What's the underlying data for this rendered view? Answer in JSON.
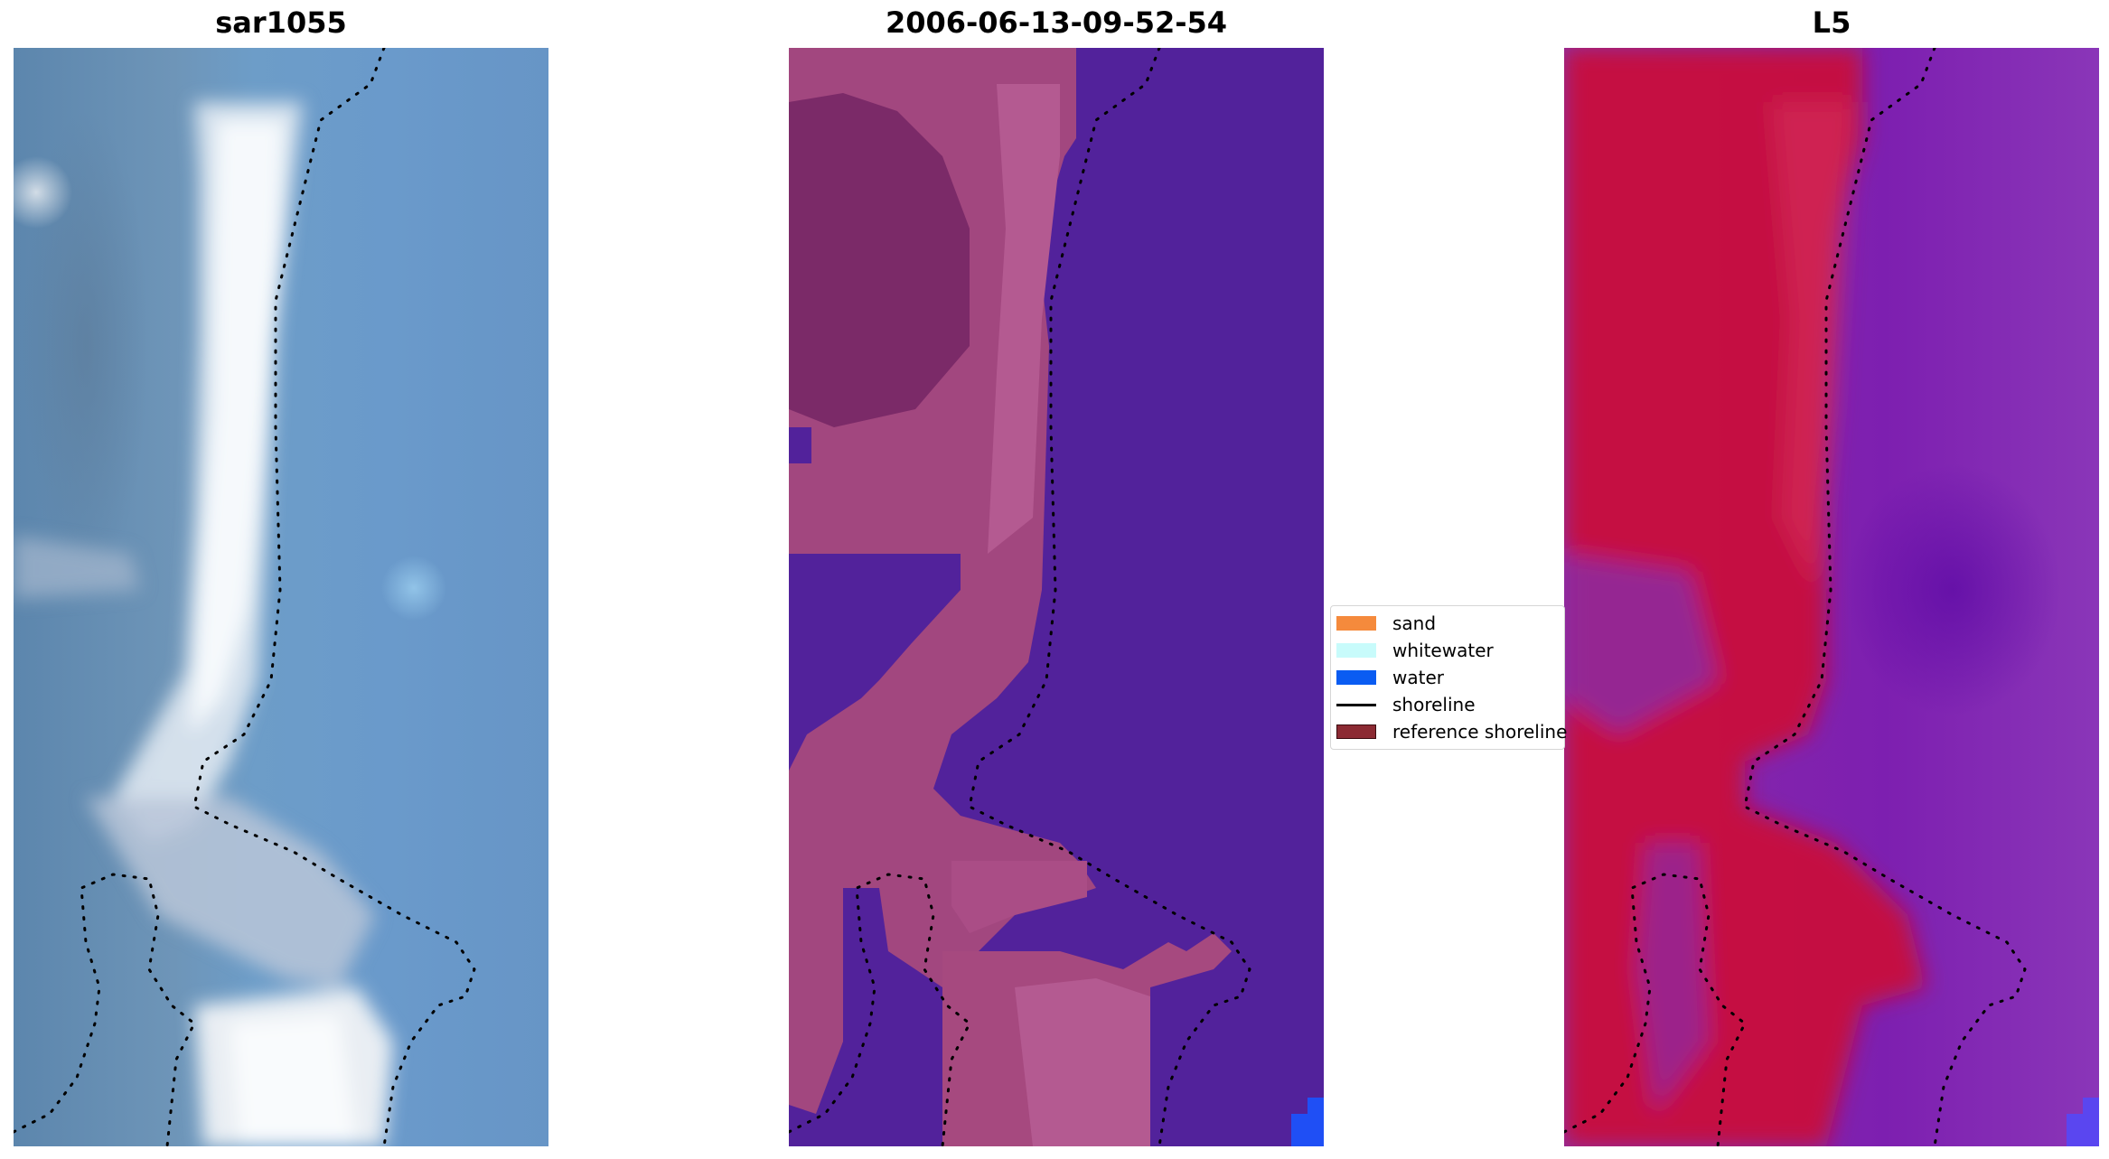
{
  "panels": [
    {
      "title": "sar1055"
    },
    {
      "title": "2006-06-13-09-52-54"
    },
    {
      "title": "L5"
    }
  ],
  "legend": {
    "items": [
      {
        "label": "sand",
        "color": "#f58a3c"
      },
      {
        "label": "whitewater",
        "color": "#c8fbfb"
      },
      {
        "label": "water",
        "color": "#0a5cf2"
      },
      {
        "label": "shoreline",
        "color": "#000000"
      },
      {
        "label": "reference shoreline",
        "color": "#8c2a33"
      }
    ]
  },
  "colors": {
    "satellite_water": "#6a9acb",
    "satellite_land": "#5c86ad",
    "satellite_bright": "#f2f6fb",
    "classified_water_bg": "#52229b",
    "classified_land": "#b0508c",
    "l5_land": "#c8103c",
    "l5_water": "#7d1fb0",
    "corner_blue": "#1f4ff5"
  }
}
